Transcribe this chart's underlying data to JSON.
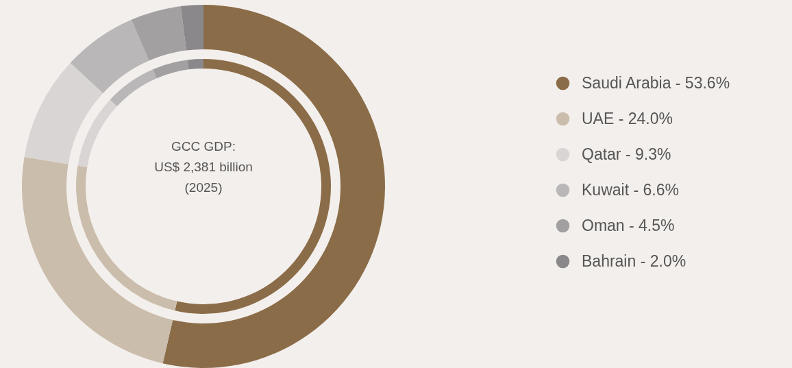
{
  "chart_data": {
    "type": "donut",
    "categories": [
      "Saudi Arabia - 53.6%",
      "UAE - 24.0%",
      "Qatar - 9.3%",
      "Kuwait - 6.6%",
      "Oman - 4.5%",
      "Bahrain - 2.0%"
    ],
    "series": [
      {
        "values": [
          53.6,
          24.0,
          9.3,
          6.6,
          4.5,
          2.0
        ]
      },
      {
        "values": [
          53.6,
          24.0,
          9.3,
          6.6,
          4.5,
          2.0
        ]
      }
    ],
    "colors": [
      "#8b6c48",
      "#cbbdab",
      "#d8d5d4",
      "#b9b7b7",
      "#a2a0a1",
      "#8a888a"
    ],
    "annotations": [
      "GCC GDP:",
      "US$ 2,381 billion",
      "(2025)"
    ],
    "legend": "right"
  }
}
